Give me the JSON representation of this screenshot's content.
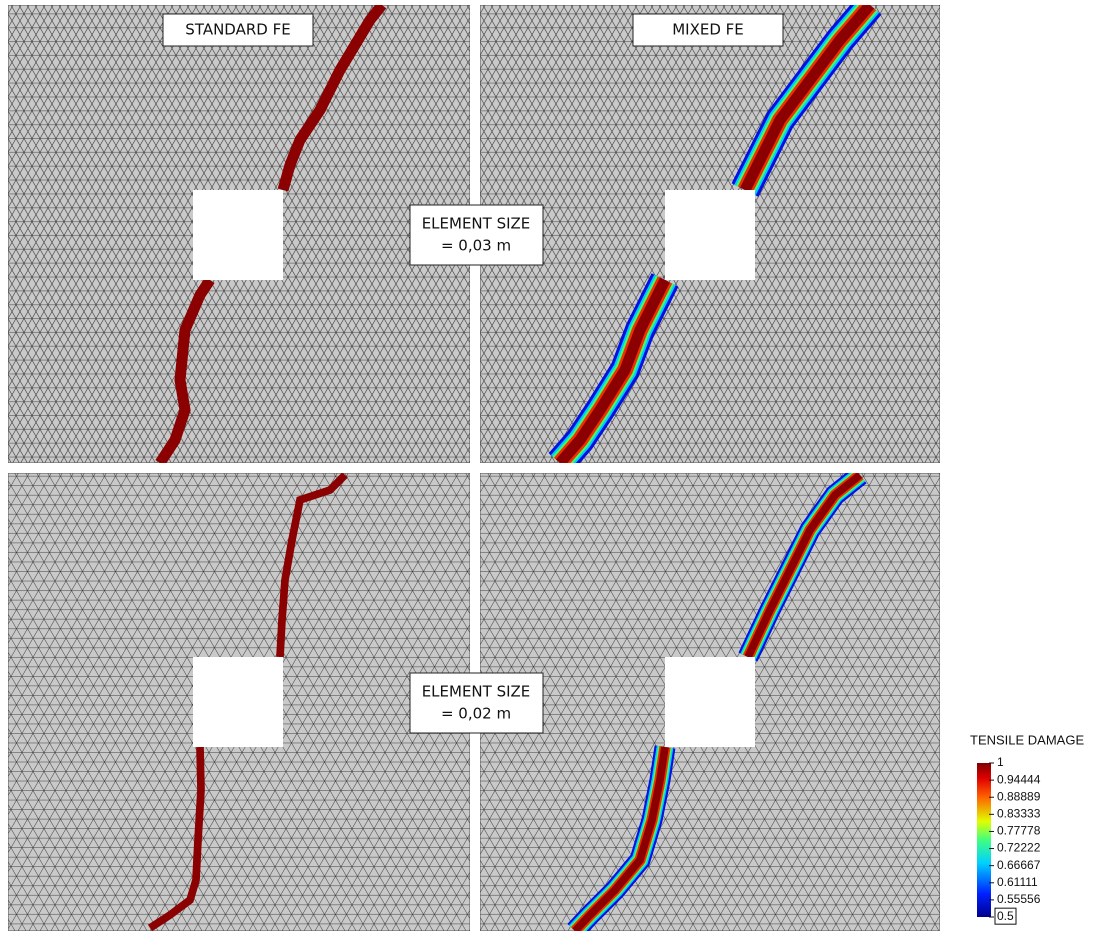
{
  "panels": [
    {
      "label": "STANDARD FE"
    },
    {
      "label": "MIXED FE"
    }
  ],
  "element_sizes": [
    {
      "line1": "ELEMENT SIZE",
      "line2": "= 0,03 m"
    },
    {
      "line1": "ELEMENT SIZE",
      "line2": "= 0,02 m"
    }
  ],
  "colorbar": {
    "title": "TENSILE DAMAGE",
    "range": [
      0.5,
      1
    ],
    "ticks": [
      1,
      0.94444,
      0.88889,
      0.83333,
      0.77778,
      0.72222,
      0.66667,
      0.61111,
      0.55556,
      0.5
    ]
  }
}
